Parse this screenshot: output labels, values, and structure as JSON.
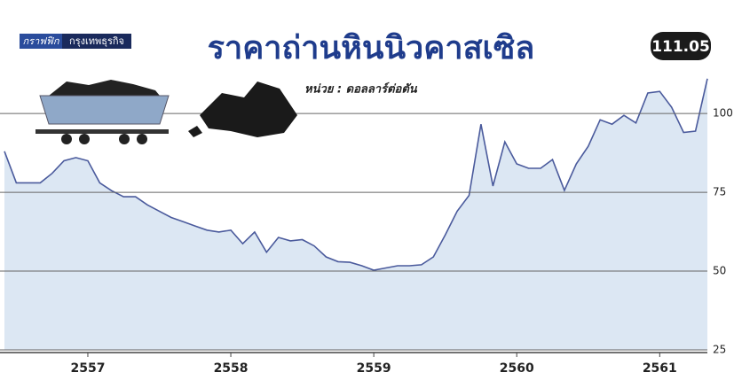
{
  "chart_data": {
    "type": "area",
    "title": "ราคาถ่านหินนิวคาสเซิล",
    "subtitle": "หน่วย : ดอลลาร์ต่อตัน",
    "source_label": "กราฟฟิก",
    "source_name": "กรุงเทพธุรกิจ",
    "categories": [
      null,
      null,
      null,
      null,
      null,
      null,
      null,
      "2557",
      null,
      null,
      null,
      null,
      null,
      null,
      null,
      null,
      null,
      null,
      null,
      "2558",
      null,
      null,
      null,
      null,
      null,
      null,
      null,
      null,
      null,
      null,
      null,
      "2559",
      null,
      null,
      null,
      null,
      null,
      null,
      null,
      null,
      null,
      null,
      null,
      "2560",
      null,
      null,
      null,
      null,
      null,
      null,
      null,
      null,
      null,
      null,
      null,
      "2561",
      null,
      null,
      null,
      null
    ],
    "series": [
      {
        "name": "ราคาถ่านหินนิวคาสเซิล",
        "color": "#4a5a9c",
        "fill": "#dce7f3",
        "values": [
          88,
          78,
          78,
          78,
          81,
          85,
          86,
          85,
          78,
          75.5,
          73.6,
          73.6,
          71,
          69,
          67,
          65.7,
          64.3,
          63,
          62.4,
          63,
          58.7,
          62.4,
          56,
          60.7,
          59.6,
          60,
          58,
          54.5,
          53,
          52.8,
          51.7,
          50.3,
          51,
          51.7,
          51.7,
          52,
          54.5,
          61.5,
          69,
          74,
          96.6,
          77,
          91,
          84,
          82.6,
          82.6,
          85.4,
          75.6,
          84,
          89.6,
          98,
          96.6,
          99.4,
          97,
          106.5,
          107,
          102,
          94,
          94.4,
          111.05
        ]
      }
    ],
    "ylim": [
      25,
      136
    ],
    "yticks": [
      25,
      50,
      75,
      100
    ],
    "grid": true
  }
}
